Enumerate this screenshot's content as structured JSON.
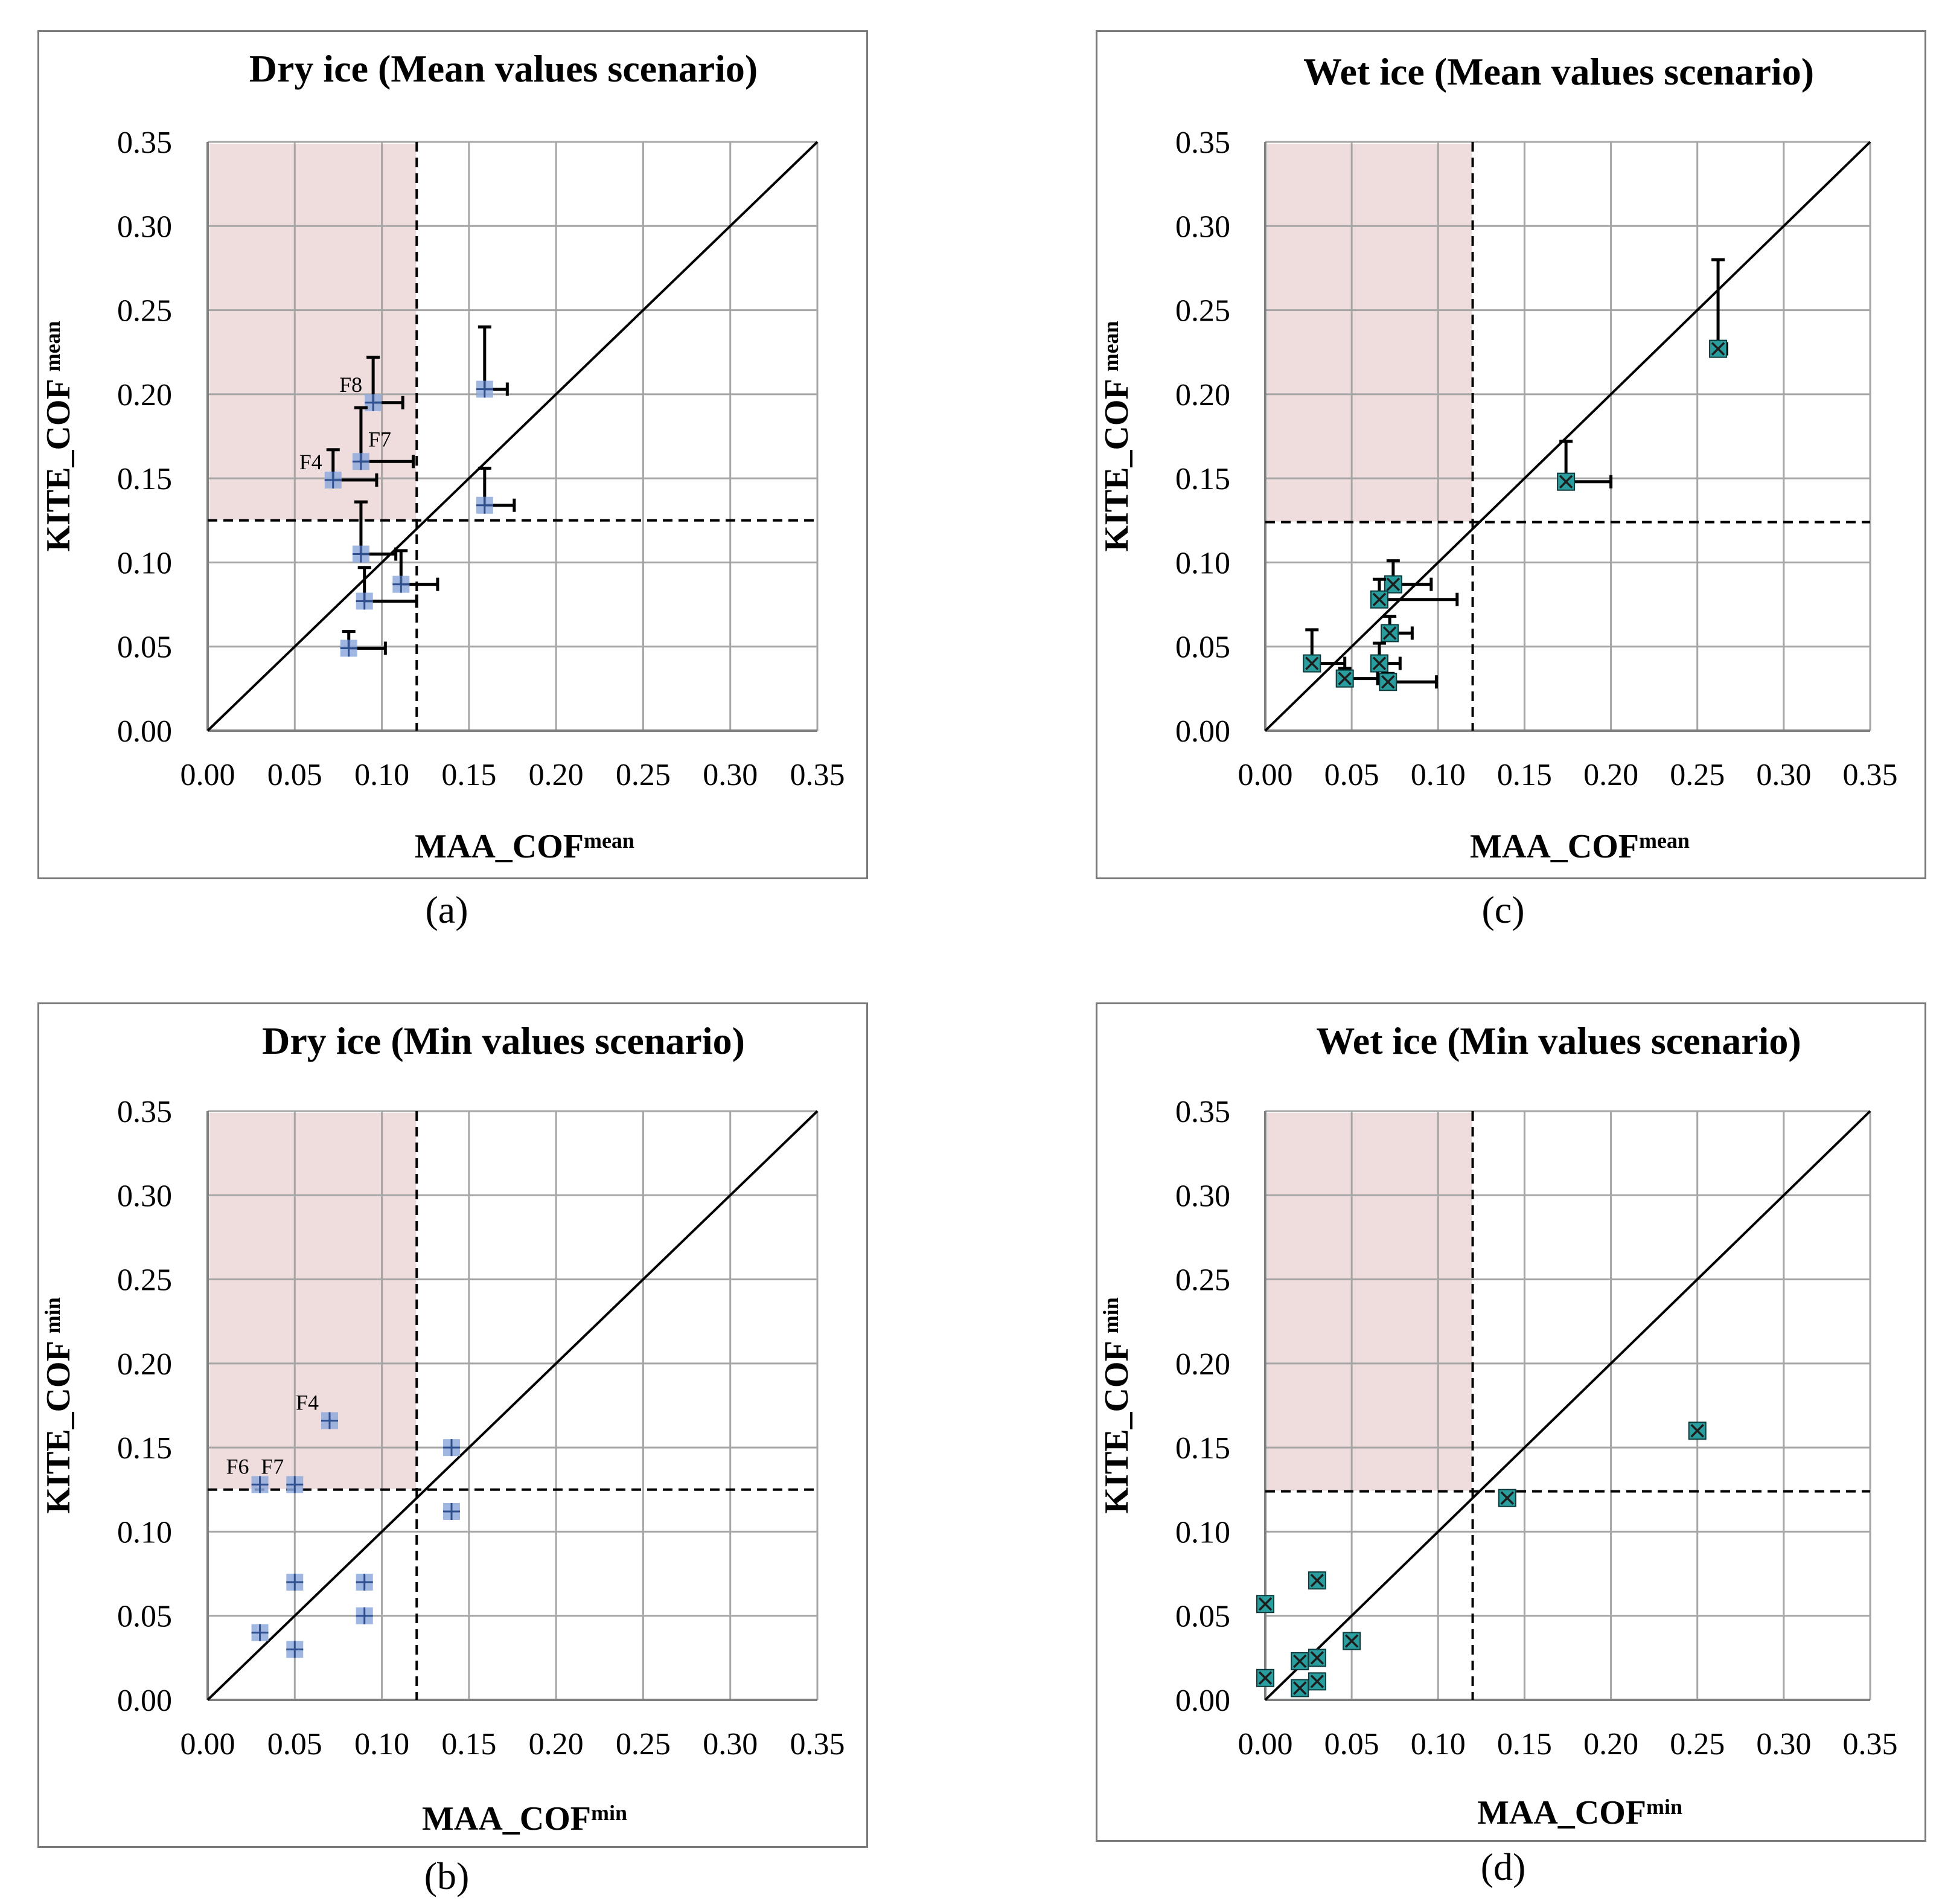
{
  "colors": {
    "shade": "#efdcdc",
    "grid": "#a6a6a6",
    "frame": "#7a7a7a",
    "dry_marker": "#8faadc",
    "dry_cross": "#2f4f8f",
    "wet_marker": "#2a9d9f",
    "wet_cross": "#1d1d1d"
  },
  "chart_data": [
    {
      "id": "a",
      "type": "scatter",
      "caption": "(a)",
      "title": "Dry ice (Mean values scenario)",
      "xlabel_main": "MAA_COF",
      "xlabel_sup": "mean",
      "ylabel_main": "KITE_COF ",
      "ylabel_sup": "mean",
      "xlim": [
        0,
        0.35
      ],
      "ylim": [
        0,
        0.35
      ],
      "ticks": [
        "0.00",
        "0.05",
        "0.10",
        "0.15",
        "0.20",
        "0.25",
        "0.30",
        "0.35"
      ],
      "threshold_x": 0.12,
      "threshold_y": 0.125,
      "shaded_region": {
        "x": [
          0,
          0.12
        ],
        "y": [
          0.125,
          0.35
        ]
      },
      "marker": "plus",
      "points": [
        {
          "x": 0.095,
          "y": 0.195,
          "err_x": 0.017,
          "err_y": 0.027,
          "label": "F8"
        },
        {
          "x": 0.088,
          "y": 0.16,
          "err_x": 0.03,
          "err_y": 0.032,
          "label": "F7"
        },
        {
          "x": 0.072,
          "y": 0.149,
          "err_x": 0.025,
          "err_y": 0.018,
          "label": "F4"
        },
        {
          "x": 0.159,
          "y": 0.203,
          "err_x": 0.013,
          "err_y": 0.037,
          "label": ""
        },
        {
          "x": 0.159,
          "y": 0.134,
          "err_x": 0.017,
          "err_y": 0.022,
          "label": ""
        },
        {
          "x": 0.088,
          "y": 0.105,
          "err_x": 0.02,
          "err_y": 0.031,
          "label": ""
        },
        {
          "x": 0.111,
          "y": 0.087,
          "err_x": 0.021,
          "err_y": 0.02,
          "label": ""
        },
        {
          "x": 0.09,
          "y": 0.077,
          "err_x": 0.03,
          "err_y": 0.02,
          "label": ""
        },
        {
          "x": 0.081,
          "y": 0.049,
          "err_x": 0.021,
          "err_y": 0.01,
          "label": ""
        }
      ]
    },
    {
      "id": "b",
      "type": "scatter",
      "caption": "(b)",
      "title": "Dry ice (Min values scenario)",
      "xlabel_main": "MAA_COF",
      "xlabel_sup": "min",
      "ylabel_main": "KITE_COF ",
      "ylabel_sup": "min",
      "xlim": [
        0,
        0.35
      ],
      "ylim": [
        0,
        0.35
      ],
      "ticks": [
        "0.00",
        "0.05",
        "0.10",
        "0.15",
        "0.20",
        "0.25",
        "0.30",
        "0.35"
      ],
      "threshold_x": 0.12,
      "threshold_y": 0.125,
      "shaded_region": {
        "x": [
          0,
          0.12
        ],
        "y": [
          0.125,
          0.35
        ]
      },
      "marker": "plus",
      "points": [
        {
          "x": 0.07,
          "y": 0.166,
          "label": "F4"
        },
        {
          "x": 0.03,
          "y": 0.128,
          "label": "F6"
        },
        {
          "x": 0.05,
          "y": 0.128,
          "label": "F7"
        },
        {
          "x": 0.14,
          "y": 0.15,
          "label": ""
        },
        {
          "x": 0.14,
          "y": 0.112,
          "label": ""
        },
        {
          "x": 0.05,
          "y": 0.07,
          "label": ""
        },
        {
          "x": 0.09,
          "y": 0.07,
          "label": ""
        },
        {
          "x": 0.09,
          "y": 0.05,
          "label": ""
        },
        {
          "x": 0.03,
          "y": 0.04,
          "label": ""
        },
        {
          "x": 0.05,
          "y": 0.03,
          "label": ""
        }
      ]
    },
    {
      "id": "c",
      "type": "scatter",
      "caption": "(c)",
      "title": "Wet ice (Mean values scenario)",
      "xlabel_main": "MAA_COF",
      "xlabel_sup": "mean",
      "ylabel_main": "KITE_COF ",
      "ylabel_sup": "mean",
      "xlim": [
        0,
        0.35
      ],
      "ylim": [
        0,
        0.35
      ],
      "ticks": [
        "0.00",
        "0.05",
        "0.10",
        "0.15",
        "0.20",
        "0.25",
        "0.30",
        "0.35"
      ],
      "threshold_x": 0.12,
      "threshold_y": 0.124,
      "shaded_region": {
        "x": [
          0,
          0.12
        ],
        "y": [
          0.124,
          0.35
        ]
      },
      "marker": "x",
      "points": [
        {
          "x": 0.262,
          "y": 0.227,
          "err_x": 0.005,
          "err_y": 0.053,
          "label": ""
        },
        {
          "x": 0.174,
          "y": 0.148,
          "err_x": 0.026,
          "err_y": 0.024,
          "label": ""
        },
        {
          "x": 0.074,
          "y": 0.087,
          "err_x": 0.022,
          "err_y": 0.014,
          "label": ""
        },
        {
          "x": 0.066,
          "y": 0.078,
          "err_x": 0.045,
          "err_y": 0.012,
          "label": ""
        },
        {
          "x": 0.072,
          "y": 0.058,
          "err_x": 0.013,
          "err_y": 0.01,
          "label": ""
        },
        {
          "x": 0.027,
          "y": 0.04,
          "err_x": 0.019,
          "err_y": 0.02,
          "label": ""
        },
        {
          "x": 0.066,
          "y": 0.04,
          "err_x": 0.012,
          "err_y": 0.012,
          "label": ""
        },
        {
          "x": 0.046,
          "y": 0.031,
          "err_x": 0.019,
          "err_y": 0.006,
          "label": ""
        },
        {
          "x": 0.071,
          "y": 0.029,
          "err_x": 0.028,
          "err_y": 0.005,
          "label": ""
        }
      ]
    },
    {
      "id": "d",
      "type": "scatter",
      "caption": "(d)",
      "title": "Wet ice (Min values scenario)",
      "xlabel_main": "MAA_COF",
      "xlabel_sup": "min",
      "ylabel_main": "KITE_COF ",
      "ylabel_sup": "min",
      "xlim": [
        0,
        0.35
      ],
      "ylim": [
        0,
        0.35
      ],
      "ticks": [
        "0.00",
        "0.05",
        "0.10",
        "0.15",
        "0.20",
        "0.25",
        "0.30",
        "0.35"
      ],
      "threshold_x": 0.12,
      "threshold_y": 0.124,
      "shaded_region": {
        "x": [
          0,
          0.12
        ],
        "y": [
          0.124,
          0.35
        ]
      },
      "marker": "x",
      "points": [
        {
          "x": 0.25,
          "y": 0.16,
          "label": ""
        },
        {
          "x": 0.14,
          "y": 0.12,
          "label": ""
        },
        {
          "x": 0.03,
          "y": 0.071,
          "label": ""
        },
        {
          "x": 0.0,
          "y": 0.057,
          "label": ""
        },
        {
          "x": 0.05,
          "y": 0.035,
          "label": ""
        },
        {
          "x": 0.03,
          "y": 0.025,
          "label": ""
        },
        {
          "x": 0.02,
          "y": 0.023,
          "label": ""
        },
        {
          "x": 0.0,
          "y": 0.013,
          "label": ""
        },
        {
          "x": 0.03,
          "y": 0.011,
          "label": ""
        },
        {
          "x": 0.02,
          "y": 0.007,
          "label": ""
        }
      ]
    }
  ]
}
